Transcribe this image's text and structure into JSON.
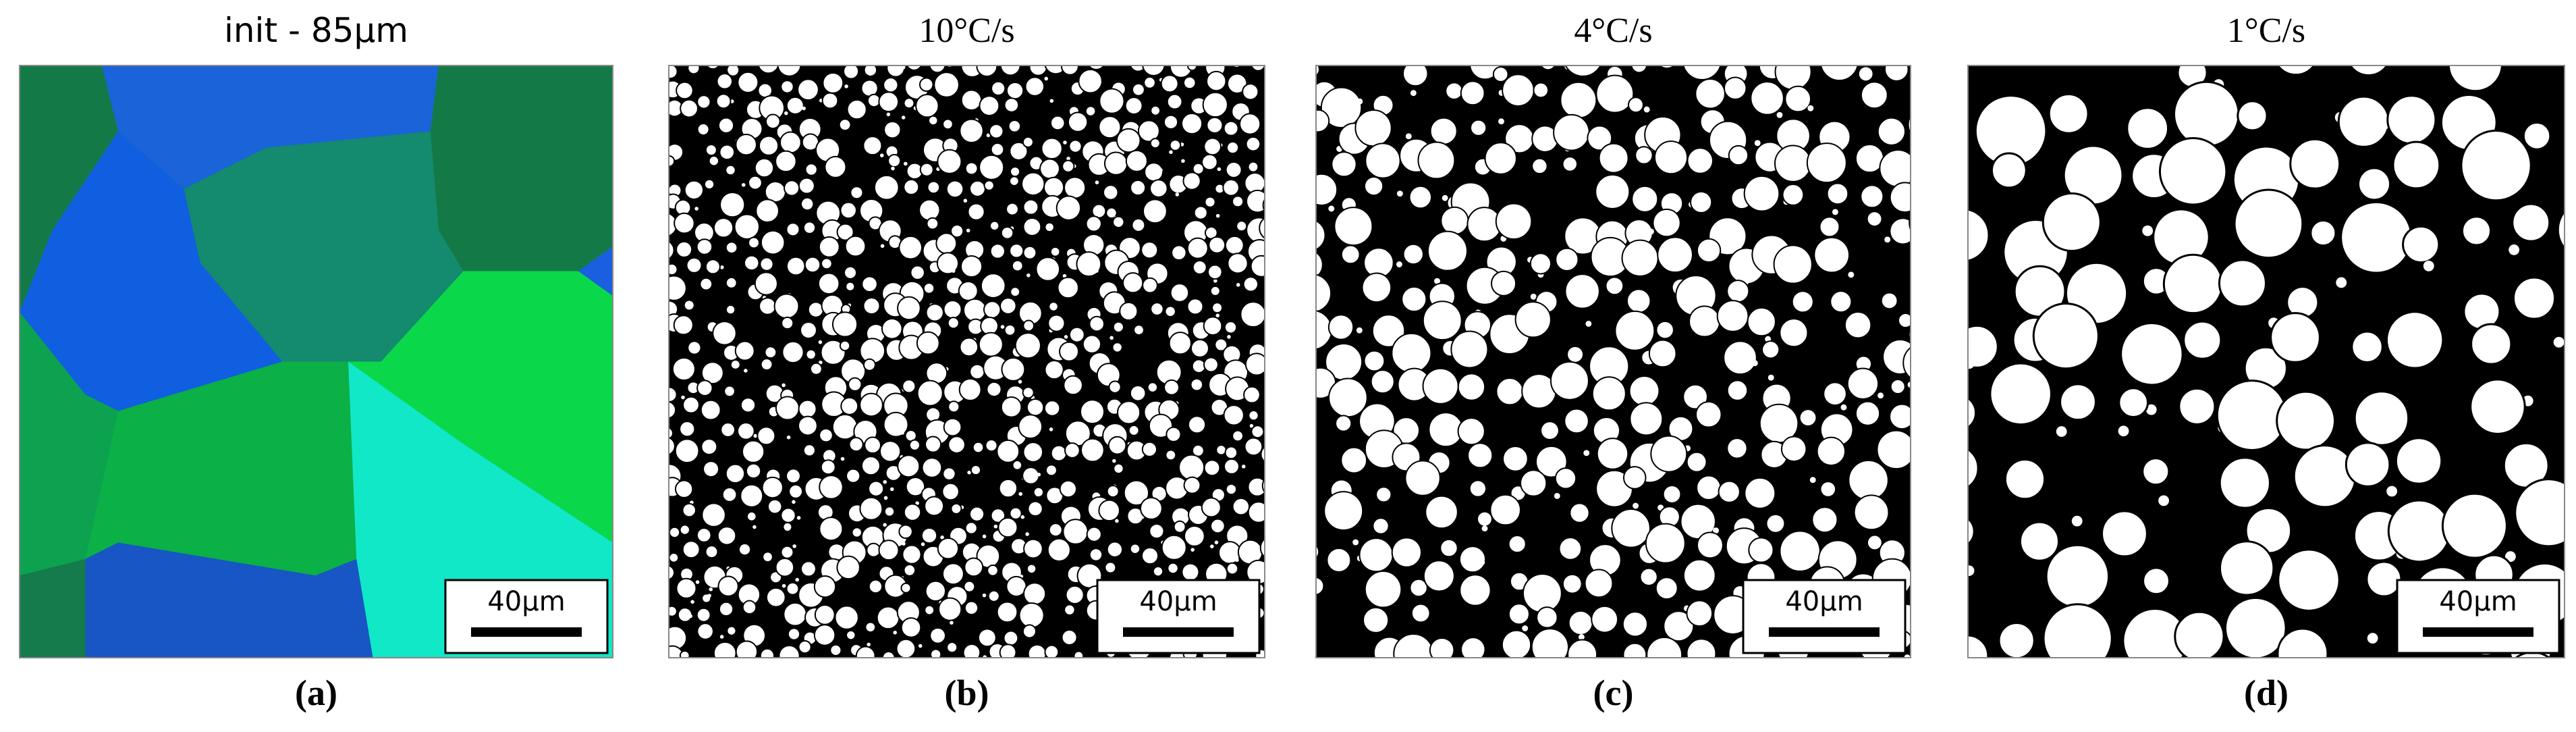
{
  "panels": [
    {
      "title": "init - 85µm",
      "scale_bar": "40µm",
      "caption": "(a)"
    },
    {
      "title": "10°C/s",
      "scale_bar": "40µm",
      "caption": "(b)"
    },
    {
      "title": "4°C/s",
      "scale_bar": "40µm",
      "caption": "(c)"
    },
    {
      "title": "1°C/s",
      "scale_bar": "40µm",
      "caption": "(d)"
    }
  ]
}
